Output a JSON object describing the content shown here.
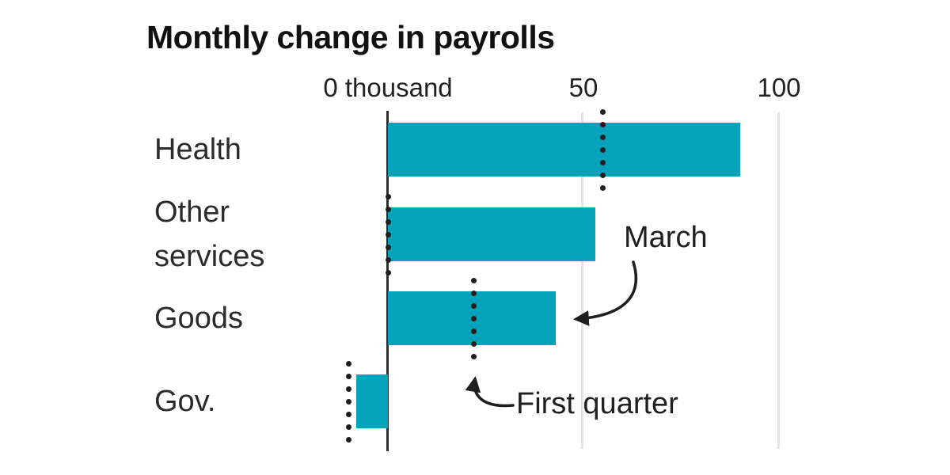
{
  "title": "Monthly change in payrolls",
  "colors": {
    "bar_teal": "#05a3ba",
    "text_dark": "#1f1f1f",
    "gridline_gray": "#e4e4e4",
    "axis_dark": "#2d2d2d"
  },
  "chart_data": {
    "type": "bar",
    "orientation": "horizontal",
    "title": "Monthly change in payrolls",
    "unit_label": "thousand",
    "categories": [
      "Health",
      "Other services",
      "Goods",
      "Gov."
    ],
    "series": [
      {
        "name": "March",
        "style": "solid_bar",
        "color": "#05a3ba",
        "values": [
          90,
          53,
          43,
          -8
        ]
      },
      {
        "name": "First quarter",
        "style": "dotted_line",
        "color": "#1f1f1f",
        "values": [
          55,
          0,
          22,
          -10
        ]
      }
    ],
    "x_ticks": [
      {
        "value": 0,
        "label": "0 thousand"
      },
      {
        "value": 50,
        "label": "50"
      },
      {
        "value": 100,
        "label": "100"
      }
    ],
    "xlim": [
      -18,
      115
    ],
    "grid": "vertical gridlines at 50 and 100",
    "legend": "annotated with arrows instead of legend box",
    "annotations": [
      {
        "text": "March",
        "points_to": "right end of Goods bar"
      },
      {
        "text": "First quarter",
        "points_to": "bottom of Goods dotted line"
      }
    ]
  }
}
